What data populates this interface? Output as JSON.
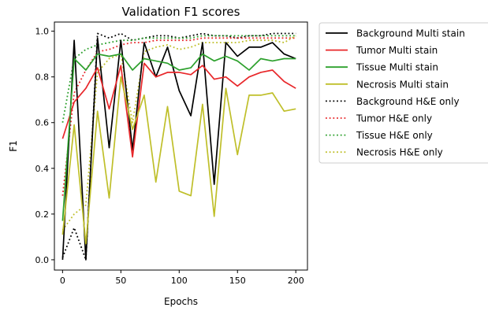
{
  "chart_data": {
    "type": "line",
    "title": "Validation F1 scores",
    "xlabel": "Epochs",
    "ylabel": "F1",
    "xlim": [
      -7,
      210
    ],
    "ylim": [
      -0.045,
      1.04
    ],
    "xticks": [
      0,
      50,
      100,
      150,
      200
    ],
    "yticks": [
      0.0,
      0.2,
      0.4,
      0.6,
      0.8,
      1.0
    ],
    "ytick_labels": [
      "0.0",
      "0.2",
      "0.4",
      "0.6",
      "0.8",
      "1.0"
    ],
    "grid": false,
    "legend_position": "outside-right",
    "x": [
      0,
      10,
      20,
      30,
      40,
      50,
      60,
      70,
      80,
      90,
      100,
      110,
      120,
      130,
      140,
      150,
      160,
      170,
      180,
      190,
      200
    ],
    "series": [
      {
        "name": "Background Multi stain",
        "color": "#000000",
        "style": "solid",
        "values": [
          0.0,
          0.96,
          0.0,
          0.97,
          0.49,
          0.96,
          0.48,
          0.95,
          0.8,
          0.93,
          0.74,
          0.63,
          0.95,
          0.33,
          0.95,
          0.89,
          0.93,
          0.93,
          0.95,
          0.9,
          0.88
        ]
      },
      {
        "name": "Tumor Multi stain",
        "color": "#e8272a",
        "style": "solid",
        "values": [
          0.53,
          0.69,
          0.75,
          0.84,
          0.66,
          0.85,
          0.45,
          0.86,
          0.8,
          0.82,
          0.82,
          0.81,
          0.85,
          0.79,
          0.8,
          0.76,
          0.8,
          0.82,
          0.83,
          0.78,
          0.75
        ]
      },
      {
        "name": "Tissue Multi stain",
        "color": "#2ca02c",
        "style": "solid",
        "values": [
          0.17,
          0.88,
          0.83,
          0.9,
          0.89,
          0.9,
          0.83,
          0.88,
          0.87,
          0.86,
          0.83,
          0.84,
          0.9,
          0.87,
          0.89,
          0.87,
          0.83,
          0.88,
          0.87,
          0.88,
          0.88
        ]
      },
      {
        "name": "Necrosis Multi stain",
        "color": "#bfbf2a",
        "style": "solid",
        "values": [
          0.11,
          0.59,
          0.07,
          0.65,
          0.27,
          0.8,
          0.57,
          0.72,
          0.34,
          0.67,
          0.3,
          0.28,
          0.68,
          0.19,
          0.75,
          0.46,
          0.72,
          0.72,
          0.73,
          0.65,
          0.66
        ]
      },
      {
        "name": "Background H&E only",
        "color": "#000000",
        "style": "dotted",
        "values": [
          0.01,
          0.14,
          0.0,
          0.99,
          0.97,
          0.99,
          0.96,
          0.97,
          0.98,
          0.98,
          0.97,
          0.98,
          0.99,
          0.98,
          0.98,
          0.97,
          0.98,
          0.98,
          0.99,
          0.99,
          0.99
        ]
      },
      {
        "name": "Tumor H&E only",
        "color": "#e8272a",
        "style": "dotted",
        "values": [
          0.28,
          0.73,
          0.83,
          0.91,
          0.92,
          0.94,
          0.95,
          0.95,
          0.96,
          0.96,
          0.96,
          0.96,
          0.97,
          0.97,
          0.97,
          0.97,
          0.97,
          0.97,
          0.97,
          0.97,
          0.97
        ]
      },
      {
        "name": "Tissue H&E only",
        "color": "#2ca02c",
        "style": "dotted",
        "values": [
          0.6,
          0.88,
          0.92,
          0.94,
          0.95,
          0.96,
          0.96,
          0.97,
          0.97,
          0.97,
          0.97,
          0.97,
          0.98,
          0.98,
          0.98,
          0.98,
          0.98,
          0.98,
          0.98,
          0.98,
          0.98
        ]
      },
      {
        "name": "Necrosis H&E only",
        "color": "#bfbf2a",
        "style": "dotted",
        "values": [
          0.13,
          0.2,
          0.24,
          0.82,
          0.88,
          0.9,
          0.6,
          0.91,
          0.93,
          0.94,
          0.92,
          0.93,
          0.95,
          0.95,
          0.95,
          0.95,
          0.96,
          0.96,
          0.96,
          0.95,
          0.98
        ]
      }
    ]
  }
}
